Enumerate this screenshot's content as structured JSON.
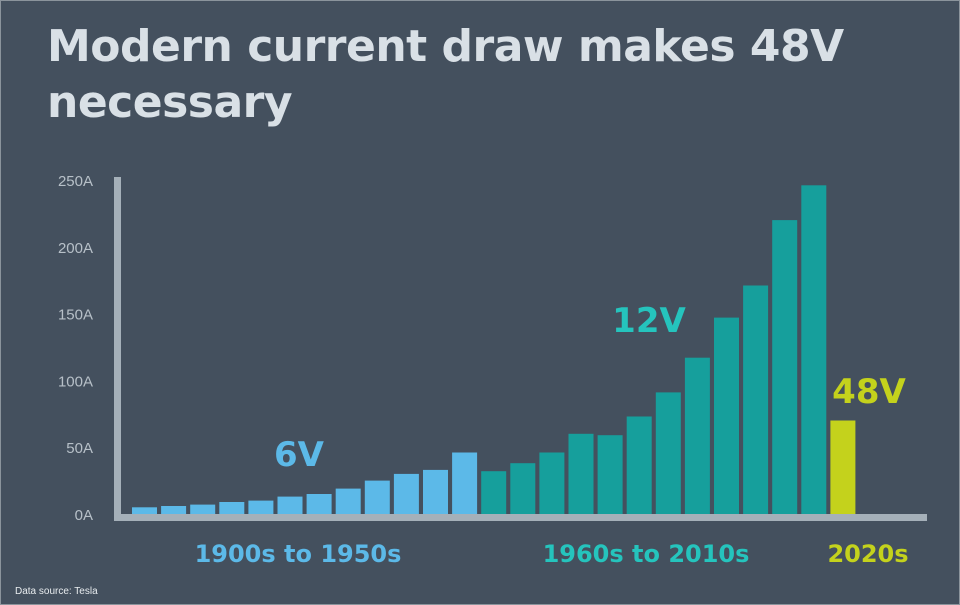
{
  "title": "Modern current draw makes 48V necessary",
  "source": "Data source: Tesla",
  "colors": {
    "background": "#44505e",
    "axis": "#a5b0b9",
    "title": "#d9e0e6",
    "tick": "#b7c0c8",
    "6V": "#5cb9e8",
    "12V": "#169f9c",
    "48V": "#c4d21c",
    "12V_label": "#25c4bd"
  },
  "chart_data": {
    "type": "bar",
    "title": "Modern current draw makes 48V necessary",
    "ylim": [
      0,
      250
    ],
    "yticks": [
      0,
      50,
      100,
      150,
      200,
      250
    ],
    "ytick_labels": [
      "0A",
      "50A",
      "100A",
      "150A",
      "200A",
      "250A"
    ],
    "grid": false,
    "series": [
      {
        "name": "6V",
        "values": [
          5,
          6,
          7,
          9,
          10,
          13,
          15,
          19,
          25,
          30,
          33,
          46
        ]
      },
      {
        "name": "12V",
        "values": [
          32,
          38,
          46,
          60,
          59,
          73,
          91,
          117,
          147,
          171,
          220,
          246
        ]
      },
      {
        "name": "48V",
        "values": [
          70
        ]
      }
    ],
    "group_labels": [
      "1900s to 1950s",
      "1960s to 2010s",
      "2020s"
    ]
  }
}
